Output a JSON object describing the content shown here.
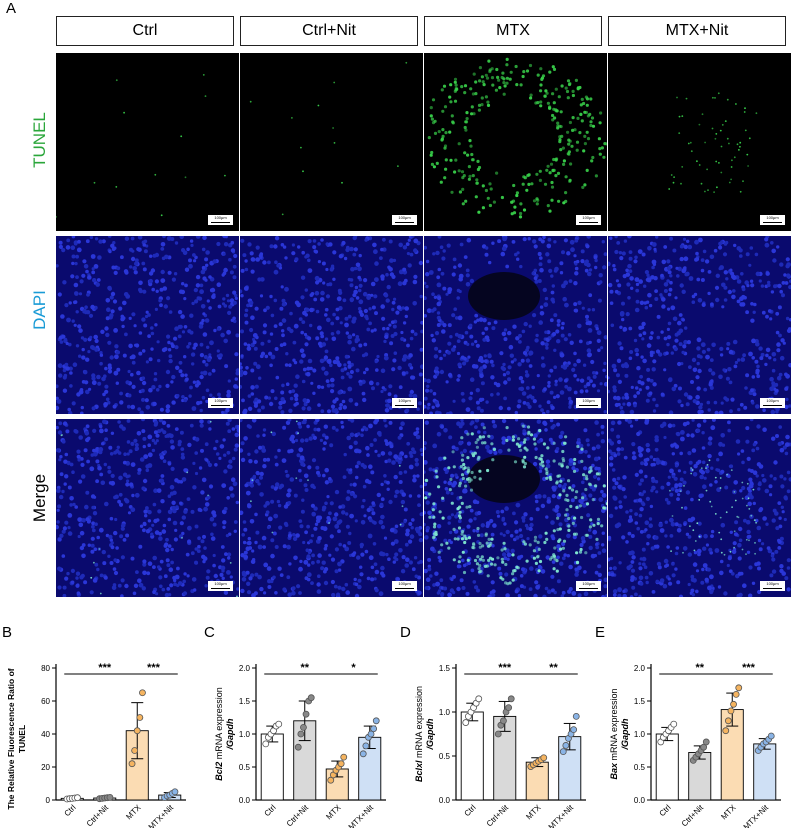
{
  "panel_letters": {
    "A": "A",
    "B": "B",
    "C": "C",
    "D": "D",
    "E": "E"
  },
  "groups": [
    "Ctrl",
    "Ctrl+Nit",
    "MTX",
    "MTX+Nit"
  ],
  "rows": [
    {
      "label": "TUNEL",
      "color": "#2aa63a"
    },
    {
      "label": "DAPI",
      "color": "#1a9bd6"
    },
    {
      "label": "Merge",
      "color": "#000000"
    }
  ],
  "scale_bar_label": "100μm",
  "colors": {
    "ctrl": "#ffffff",
    "ctrl_nit": "#d9d9d9",
    "mtx": "#fbdcb3",
    "mtx_nit": "#cfe0f5"
  },
  "chart_data": [
    {
      "panel": "B",
      "type": "bar",
      "ylabel_line1": "The Relative Fluorescence Ratio of",
      "ylabel_line2": "TUNEL",
      "categories": [
        "Ctrl",
        "Ctrl+Nit",
        "MTX",
        "MTX+Nit"
      ],
      "values": [
        1,
        1.2,
        42,
        3
      ],
      "errors": [
        0.5,
        0.5,
        17,
        1.5
      ],
      "points": [
        [
          0.6,
          0.8,
          1.0,
          1.2,
          1.4
        ],
        [
          0.8,
          1.0,
          1.2,
          1.4,
          1.6
        ],
        [
          22,
          30,
          42,
          50,
          65
        ],
        [
          1.5,
          2.5,
          3,
          4,
          5
        ]
      ],
      "ylim": [
        0,
        80
      ],
      "yticks": [
        "0",
        "20",
        "40",
        "60",
        "80"
      ],
      "tick_values": [
        0,
        20,
        40,
        60,
        80
      ],
      "sig": [
        {
          "from": 0,
          "to": 2,
          "label": "***"
        },
        {
          "from": 2,
          "to": 3,
          "label": "***"
        }
      ]
    },
    {
      "panel": "C",
      "type": "bar",
      "gene": "Bcl2",
      "ylabel_rest": " mRNA expression",
      "ylabel_line2": "/Gapdh",
      "categories": [
        "Ctrl",
        "Ctrl+Nit",
        "MTX",
        "MTX+Nit"
      ],
      "values": [
        1.0,
        1.2,
        0.47,
        0.95
      ],
      "errors": [
        0.12,
        0.3,
        0.12,
        0.17
      ],
      "points": [
        [
          0.85,
          0.95,
          1.0,
          1.05,
          1.12,
          1.15
        ],
        [
          0.8,
          1.0,
          1.1,
          1.3,
          1.5,
          1.55
        ],
        [
          0.3,
          0.38,
          0.45,
          0.5,
          0.55,
          0.65
        ],
        [
          0.7,
          0.82,
          0.95,
          1.0,
          1.08,
          1.2
        ]
      ],
      "ylim": [
        0,
        2.0
      ],
      "yticks": [
        "0.0",
        "0.5",
        "1.0",
        "1.5",
        "2.0"
      ],
      "tick_values": [
        0,
        0.5,
        1.0,
        1.5,
        2.0
      ],
      "sig": [
        {
          "from": 0,
          "to": 2,
          "label": "**"
        },
        {
          "from": 2,
          "to": 3,
          "label": "*"
        }
      ]
    },
    {
      "panel": "D",
      "type": "bar",
      "gene": "Bclxl",
      "ylabel_rest": " mRNA expression",
      "ylabel_line2": "/Gapdh",
      "categories": [
        "Ctrl",
        "Ctrl+Nit",
        "MTX",
        "MTX+Nit"
      ],
      "values": [
        1.0,
        0.95,
        0.43,
        0.72
      ],
      "errors": [
        0.1,
        0.17,
        0.05,
        0.15
      ],
      "points": [
        [
          0.88,
          0.95,
          1.0,
          1.05,
          1.1,
          1.15
        ],
        [
          0.75,
          0.85,
          0.9,
          1.0,
          1.05,
          1.15
        ],
        [
          0.38,
          0.4,
          0.42,
          0.44,
          0.46,
          0.48
        ],
        [
          0.55,
          0.62,
          0.7,
          0.75,
          0.8,
          0.95
        ]
      ],
      "ylim": [
        0,
        1.5
      ],
      "yticks": [
        "0.0",
        "0.5",
        "1.0",
        "1.5"
      ],
      "tick_values": [
        0,
        0.5,
        1.0,
        1.5
      ],
      "sig": [
        {
          "from": 0,
          "to": 2,
          "label": "***"
        },
        {
          "from": 2,
          "to": 3,
          "label": "**"
        }
      ]
    },
    {
      "panel": "E",
      "type": "bar",
      "gene": "Bax",
      "ylabel_rest": " mRNA expression",
      "ylabel_line2": "/Gapdh",
      "categories": [
        "Ctrl",
        "Ctrl+Nit",
        "MTX",
        "MTX+Nit"
      ],
      "values": [
        1.0,
        0.72,
        1.37,
        0.85
      ],
      "errors": [
        0.1,
        0.1,
        0.25,
        0.08
      ],
      "points": [
        [
          0.88,
          0.95,
          1.0,
          1.05,
          1.1,
          1.15
        ],
        [
          0.6,
          0.65,
          0.7,
          0.75,
          0.8,
          0.88
        ],
        [
          1.05,
          1.2,
          1.35,
          1.45,
          1.6,
          1.7
        ],
        [
          0.75,
          0.8,
          0.85,
          0.88,
          0.92,
          0.97
        ]
      ],
      "ylim": [
        0,
        2.0
      ],
      "yticks": [
        "0.0",
        "0.5",
        "1.0",
        "1.5",
        "2.0"
      ],
      "tick_values": [
        0,
        0.5,
        1.0,
        1.5,
        2.0
      ],
      "sig": [
        {
          "from": 0,
          "to": 2,
          "label": "**"
        },
        {
          "from": 2,
          "to": 3,
          "label": "***"
        }
      ]
    }
  ]
}
